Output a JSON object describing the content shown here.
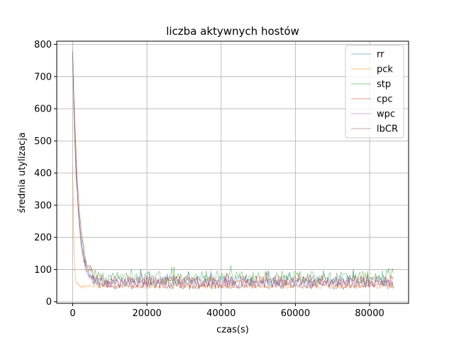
{
  "chart_data": {
    "type": "line",
    "title": "liczba aktywnych hostów",
    "xlabel": "czas(s)",
    "ylabel": "średnia utylizacja",
    "xlim": [
      -4300,
      90500
    ],
    "ylim": [
      -5,
      810
    ],
    "xticks": [
      0,
      20000,
      40000,
      60000,
      80000
    ],
    "yticks": [
      0,
      100,
      200,
      300,
      400,
      500,
      600,
      700,
      800
    ],
    "grid": true,
    "legend_position": "top-right",
    "line_width_note": "thin semi-transparent lines",
    "series": [
      {
        "name": "rr",
        "color": "#1f77b4",
        "peak": 780,
        "decay_x": 1200,
        "baseline": 65,
        "noise": 18
      },
      {
        "name": "pck",
        "color": "#ff7f0e",
        "peak": 420,
        "decay_x": 300,
        "baseline": 47,
        "noise": 6
      },
      {
        "name": "stp",
        "color": "#2ca02c",
        "peak": 760,
        "decay_x": 1400,
        "baseline": 75,
        "noise": 22
      },
      {
        "name": "cpc",
        "color": "#d62728",
        "peak": 775,
        "decay_x": 1500,
        "baseline": 62,
        "noise": 20
      },
      {
        "name": "wpc",
        "color": "#9467bd",
        "peak": 770,
        "decay_x": 1300,
        "baseline": 58,
        "noise": 16
      },
      {
        "name": "lbCR",
        "color": "#8c564b",
        "peak": 765,
        "decay_x": 1350,
        "baseline": 55,
        "noise": 17
      }
    ],
    "x_end": 86400
  }
}
